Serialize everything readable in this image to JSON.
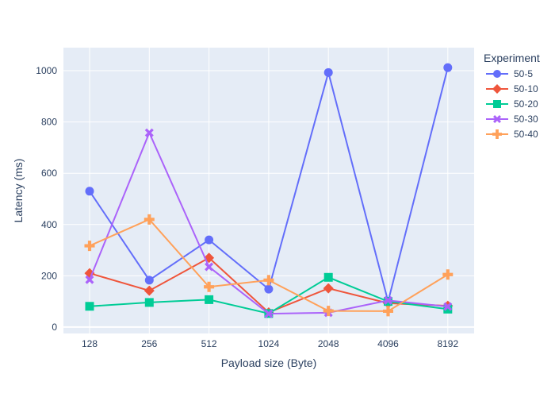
{
  "chart_data": {
    "type": "line",
    "xlabel": "Payload size (Byte)",
    "ylabel": "Latency (ms)",
    "categories": [
      "128",
      "256",
      "512",
      "1024",
      "2048",
      "4096",
      "8192"
    ],
    "ylim": [
      -25,
      1090
    ],
    "yticks": [
      0,
      200,
      400,
      600,
      800,
      1000
    ],
    "grid": true,
    "legend": {
      "title": "Experiment",
      "placement": "right"
    },
    "series": [
      {
        "name": "50-5",
        "color": "#636efa",
        "marker": "circle",
        "values": [
          530,
          183,
          340,
          148,
          993,
          100,
          1012
        ]
      },
      {
        "name": "50-10",
        "color": "#EF553B",
        "marker": "diamond",
        "values": [
          210,
          142,
          270,
          57,
          151,
          93,
          83
        ]
      },
      {
        "name": "50-20",
        "color": "#00cc96",
        "marker": "square",
        "values": [
          81,
          96,
          107,
          53,
          194,
          100,
          70
        ]
      },
      {
        "name": "50-30",
        "color": "#ab63fa",
        "marker": "x",
        "values": [
          185,
          758,
          235,
          52,
          56,
          104,
          80
        ]
      },
      {
        "name": "50-40",
        "color": "#FFA15A",
        "marker": "cross",
        "values": [
          317,
          420,
          157,
          183,
          63,
          62,
          205
        ]
      }
    ]
  }
}
